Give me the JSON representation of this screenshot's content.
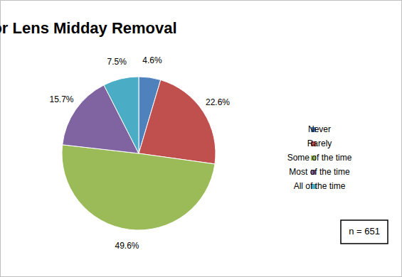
{
  "chart_data": {
    "type": "pie",
    "title": "Recommendation for Lens Midday Removal",
    "categories": [
      "Never",
      "Rarely",
      "Some of the time",
      "Most of the time",
      "All of the time"
    ],
    "values": [
      4.6,
      22.6,
      49.6,
      15.7,
      7.5
    ],
    "value_labels": [
      "4.6%",
      "22.6%",
      "49.6%",
      "15.7%",
      "7.5%"
    ],
    "colors": [
      "#4f81bd",
      "#c0504d",
      "#9bbb59",
      "#8064a2",
      "#4bacc6"
    ],
    "data_labels": true,
    "legend": "right",
    "annotations": [
      "n = 651"
    ]
  }
}
